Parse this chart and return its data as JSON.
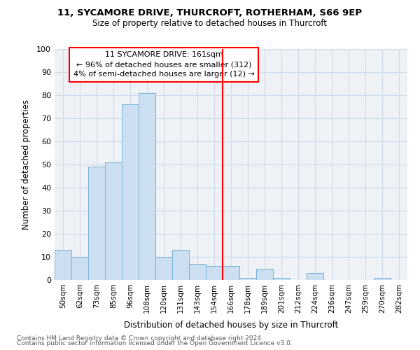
{
  "title1": "11, SYCAMORE DRIVE, THURCROFT, ROTHERHAM, S66 9EP",
  "title2": "Size of property relative to detached houses in Thurcroft",
  "xlabel": "Distribution of detached houses by size in Thurcroft",
  "ylabel": "Number of detached properties",
  "footnote1": "Contains HM Land Registry data © Crown copyright and database right 2024.",
  "footnote2": "Contains public sector information licensed under the Open Government Licence v3.0.",
  "categories": [
    "50sqm",
    "62sqm",
    "73sqm",
    "85sqm",
    "96sqm",
    "108sqm",
    "120sqm",
    "131sqm",
    "143sqm",
    "154sqm",
    "166sqm",
    "178sqm",
    "189sqm",
    "201sqm",
    "212sqm",
    "224sqm",
    "236sqm",
    "247sqm",
    "259sqm",
    "270sqm",
    "282sqm"
  ],
  "values": [
    13,
    10,
    49,
    51,
    76,
    81,
    10,
    13,
    7,
    6,
    6,
    1,
    5,
    1,
    0,
    3,
    0,
    0,
    0,
    1,
    0
  ],
  "bar_color": "#ccdff0",
  "bar_edge_color": "#7ab4d8",
  "annotation_title": "11 SYCAMORE DRIVE: 161sqm",
  "annotation_line1": "← 96% of detached houses are smaller (312)",
  "annotation_line2": "4% of semi-detached houses are larger (12) →",
  "vline_index": 10,
  "ylim": [
    0,
    100
  ],
  "yticks": [
    0,
    10,
    20,
    30,
    40,
    50,
    60,
    70,
    80,
    90,
    100
  ],
  "grid_color": "#d0dce8",
  "ax_bg_color": "#eef2f7"
}
